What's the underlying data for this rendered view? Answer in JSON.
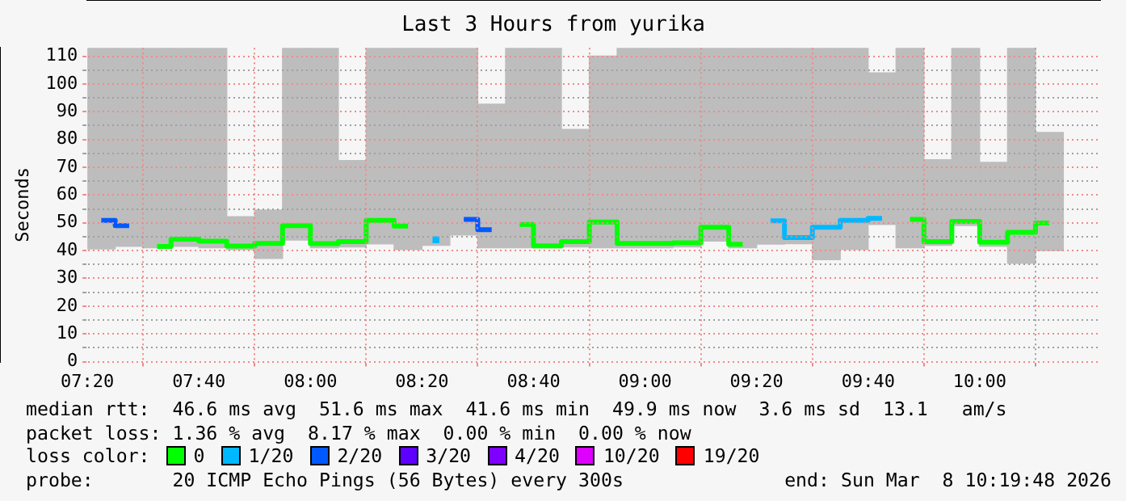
{
  "chart_data": {
    "type": "bar",
    "title": "Last 3 Hours from yurika",
    "ylabel": "Seconds",
    "x": [
      7.375,
      7.4583,
      7.5417,
      7.625,
      7.7083,
      7.7917,
      7.875,
      7.9583,
      8.0417,
      8.125,
      8.2083,
      8.2917,
      8.375,
      8.4583,
      8.5417,
      8.625,
      8.7083,
      8.7917,
      8.875,
      8.9583,
      9.0417,
      9.125,
      9.2083,
      9.2917,
      9.375,
      9.4583,
      9.5417,
      9.625,
      9.7083,
      9.7917,
      9.875,
      9.9583,
      10.0417,
      10.125,
      10.2083
    ],
    "series": [
      {
        "type": "bar",
        "color": "#bdbdbd",
        "base": [
          40.6,
          41.5,
          41.0,
          41.5,
          41.0,
          40.4,
          37.2,
          43.8,
          41.0,
          41.3,
          42.4,
          40.4,
          41.9,
          45.6,
          41.0,
          41.0,
          41.0,
          41.3,
          41.0,
          41.0,
          41.0,
          41.3,
          43.4,
          41.0,
          42.3,
          42.5,
          36.7,
          40.4,
          49.4,
          41.0,
          41.9,
          49.0,
          41.5,
          35.4,
          40.0
        ],
        "values": [
          72.4,
          71.5,
          72.0,
          71.5,
          72.0,
          11.8,
          17.4,
          69.2,
          72.0,
          31.1,
          70.6,
          72.6,
          71.1,
          67.4,
          51.7,
          72.0,
          72.0,
          42.3,
          69.0,
          72.0,
          72.0,
          71.7,
          69.6,
          72.0,
          70.7,
          70.5,
          76.3,
          72.6,
          54.6,
          72.0,
          30.8,
          64.0,
          30.3,
          77.6,
          42.5
        ]
      },
      {
        "type": "step",
        "name": "0",
        "color": "#00ff00",
        "values": [
          null,
          null,
          41.5,
          44.1,
          43.4,
          41.6,
          42.6,
          49.0,
          42.5,
          43.2,
          50.9,
          48.8,
          null,
          null,
          null,
          49.4,
          41.7,
          43.2,
          50.3,
          42.6,
          42.6,
          42.8,
          48.4,
          42.3,
          null,
          null,
          null,
          null,
          null,
          51.2,
          43.2,
          50.5,
          43.0,
          46.6,
          49.9
        ]
      },
      {
        "type": "step",
        "name": "1/20",
        "color": "#00b8ff",
        "values": [
          null,
          null,
          null,
          null,
          null,
          null,
          null,
          null,
          null,
          null,
          null,
          null,
          43.9,
          null,
          null,
          null,
          null,
          null,
          null,
          null,
          null,
          null,
          null,
          null,
          50.7,
          44.7,
          48.4,
          50.9,
          51.6,
          null,
          null,
          null,
          null,
          null,
          null
        ]
      },
      {
        "type": "step",
        "name": "2/20",
        "color": "#0059ff",
        "values": [
          50.9,
          49.0,
          null,
          null,
          null,
          null,
          null,
          null,
          null,
          null,
          null,
          null,
          null,
          51.2,
          47.5,
          null,
          null,
          null,
          null,
          null,
          null,
          null,
          null,
          null,
          null,
          null,
          null,
          null,
          null,
          null,
          null,
          null,
          null,
          null,
          null
        ]
      },
      {
        "type": "step",
        "name": "3/20",
        "color": "#5e00ff",
        "values": [
          null,
          null,
          null,
          null,
          null,
          null,
          null,
          null,
          null,
          null,
          null,
          null,
          null,
          null,
          null,
          null,
          null,
          null,
          null,
          null,
          null,
          null,
          null,
          null,
          null,
          null,
          null,
          null,
          null,
          null,
          null,
          null,
          null,
          null,
          null
        ]
      },
      {
        "type": "step",
        "name": "4/20",
        "color": "#7e00ff",
        "values": [
          null,
          null,
          null,
          null,
          null,
          null,
          null,
          null,
          null,
          null,
          null,
          null,
          null,
          null,
          null,
          null,
          null,
          null,
          null,
          null,
          null,
          null,
          null,
          null,
          null,
          null,
          null,
          null,
          null,
          null,
          null,
          null,
          null,
          null,
          null
        ]
      },
      {
        "type": "step",
        "name": "10/20",
        "color": "#dd00ff",
        "values": [
          null,
          null,
          null,
          null,
          null,
          null,
          null,
          null,
          null,
          null,
          null,
          null,
          null,
          null,
          null,
          null,
          null,
          null,
          null,
          null,
          null,
          null,
          null,
          null,
          null,
          null,
          null,
          null,
          null,
          null,
          null,
          null,
          null,
          null,
          null
        ]
      },
      {
        "type": "step",
        "name": "19/20",
        "color": "#ff0000",
        "values": [
          null,
          null,
          null,
          null,
          null,
          null,
          null,
          null,
          null,
          null,
          null,
          null,
          null,
          null,
          null,
          null,
          null,
          null,
          null,
          null,
          null,
          null,
          null,
          null,
          null,
          null,
          null,
          null,
          null,
          null,
          null,
          null,
          null,
          null,
          null
        ]
      }
    ],
    "xlim": [
      7.3333,
      10.36
    ],
    "xticks": [
      {
        "value": 7.3333,
        "label": "07:20"
      },
      {
        "value": 7.6667,
        "label": "07:40"
      },
      {
        "value": 8,
        "label": "08:00"
      },
      {
        "value": 8.3333,
        "label": "08:20"
      },
      {
        "value": 8.6667,
        "label": "08:40"
      },
      {
        "value": 9,
        "label": "09:00"
      },
      {
        "value": 9.3333,
        "label": "09:20"
      },
      {
        "value": 9.6667,
        "label": "09:40"
      },
      {
        "value": 10,
        "label": "10:00"
      }
    ],
    "ylim": [
      0,
      113
    ],
    "yticks": [
      0,
      {
        "value": 5,
        "label": null
      },
      10,
      {
        "value": 15,
        "label": null
      },
      20,
      {
        "value": 25,
        "label": null
      },
      30,
      {
        "value": 35,
        "label": null
      },
      40,
      {
        "value": 45,
        "label": null
      },
      50,
      {
        "value": 55,
        "label": null
      },
      60,
      {
        "value": 65,
        "label": null
      },
      70,
      {
        "value": 75,
        "label": null
      },
      80,
      {
        "value": 85,
        "label": null
      },
      90,
      {
        "value": 95,
        "label": null
      },
      100,
      {
        "value": 105,
        "label": null
      },
      110
    ],
    "grid": true,
    "legend": "bottom",
    "legend_title": "loss color:",
    "annotations": [
      "median rtt:  46.6 ms avg  51.6 ms max  41.6 ms min  49.9 ms now  3.6 ms sd  13.1   am/s",
      "packet loss: 1.36 % avg  8.17 % max  0.00 % min  0.00 % now",
      "probe:       20 ICMP Echo Pings (56 Bytes) every 300s",
      "end: Sun Mar  8 10:19:48 2026"
    ]
  }
}
